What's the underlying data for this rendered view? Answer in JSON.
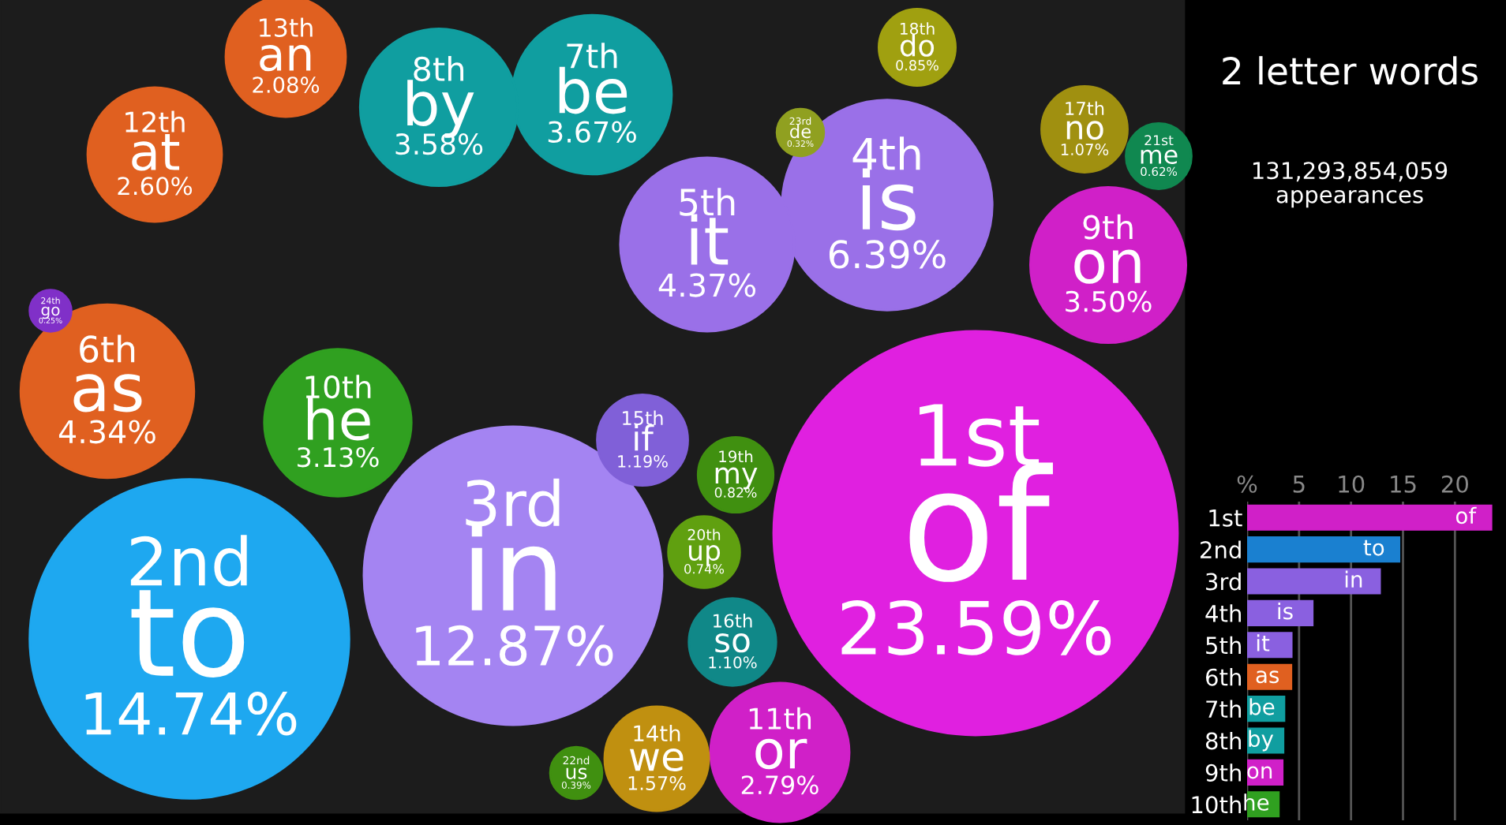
{
  "chart_data": [
    {
      "type": "other",
      "title": "2 letter words",
      "subtitle": "131,293,854,059\nappearances",
      "categories": [
        "of",
        "to",
        "in",
        "is",
        "it",
        "as",
        "be",
        "by",
        "on",
        "he",
        "or",
        "at",
        "an",
        "we",
        "if",
        "so",
        "no",
        "do",
        "my",
        "up",
        "me",
        "us",
        "de",
        "go"
      ],
      "annotations": [
        "1st",
        "2nd",
        "3rd",
        "4th",
        "5th",
        "6th",
        "7th",
        "8th",
        "9th",
        "10th",
        "11th",
        "12th",
        "13th",
        "14th",
        "15th",
        "16th",
        "17th",
        "18th",
        "19th",
        "20th",
        "21st",
        "22nd",
        "23rd",
        "24th"
      ],
      "values": [
        23.59,
        14.74,
        12.87,
        6.39,
        4.37,
        4.34,
        3.67,
        3.58,
        3.5,
        3.13,
        2.79,
        2.6,
        2.08,
        1.57,
        1.19,
        1.1,
        1.07,
        0.85,
        0.82,
        0.74,
        0.62,
        0.39,
        0.32,
        0.25
      ],
      "value_labels": [
        "23.59%",
        "14.74%",
        "12.87%",
        "6.39%",
        "4.37%",
        "4.34%",
        "3.67%",
        "3.58%",
        "3.50%",
        "3.13%",
        "2.79%",
        "2.60%",
        "2.08%",
        "1.57%",
        "1.19%",
        "1.10%",
        "1.07%",
        "0.85%",
        "0.82%",
        "0.74%",
        "0.62%",
        "0.39%",
        "0.32%",
        "0.25%"
      ],
      "colors": [
        "#e020e0",
        "#1ea8f0",
        "#a484f2",
        "#9a70e8",
        "#9a70e8",
        "#e06020",
        "#109ea0",
        "#109ea0",
        "#d020c8",
        "#30a020",
        "#d020c8",
        "#e06020",
        "#e06020",
        "#c09010",
        "#8060d8",
        "#108888",
        "#a09010",
        "#a0a010",
        "#409010",
        "#60a010",
        "#108850",
        "#409010",
        "#90a020",
        "#8030c8"
      ]
    },
    {
      "type": "bar",
      "orientation": "horizontal",
      "categories": [
        "1st",
        "2nd",
        "3rd",
        "4th",
        "5th",
        "6th",
        "7th",
        "8th",
        "9th",
        "10th"
      ],
      "values": [
        23.59,
        14.74,
        12.87,
        6.39,
        4.37,
        4.34,
        3.67,
        3.58,
        3.5,
        3.13
      ],
      "value_labels": [
        "of",
        "to",
        "in",
        "is",
        "it",
        "as",
        "be",
        "by",
        "on",
        "he"
      ],
      "colors": [
        "#d020c8",
        "#1a80d0",
        "#8a60e0",
        "#8a60e0",
        "#8a60e0",
        "#e06020",
        "#109ea0",
        "#109ea0",
        "#d020c8",
        "#30a020"
      ],
      "xlim": [
        0,
        24
      ],
      "xticks": [
        {
          "value": 0,
          "label": "%"
        },
        5,
        10,
        15,
        20
      ],
      "grid": "x"
    }
  ]
}
